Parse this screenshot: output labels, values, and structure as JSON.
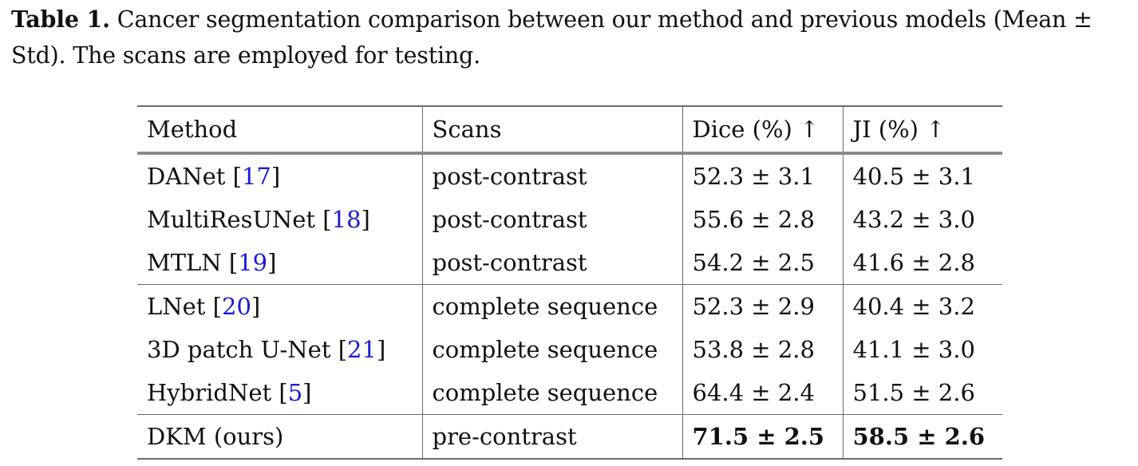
{
  "caption": {
    "label": "Table 1.",
    "text": " Cancer segmentation comparison between our method and previous models (Mean ± Std). The scans are employed for testing."
  },
  "table": {
    "headers": [
      "Method",
      "Scans",
      "Dice (%) ↑",
      "JI (%) ↑"
    ],
    "rows": [
      {
        "method": "DANet",
        "ref": "17",
        "scans": "post-contrast",
        "dice": "52.3 ± 3.1",
        "ji": "40.5 ± 3.1"
      },
      {
        "method": "MultiResUNet",
        "ref": "18",
        "scans": "post-contrast",
        "dice": "55.6 ± 2.8",
        "ji": "43.2 ± 3.0"
      },
      {
        "method": "MTLN",
        "ref": "19",
        "scans": "post-contrast",
        "dice": "54.2 ± 2.5",
        "ji": "41.6 ± 2.8"
      },
      {
        "method": "LNet",
        "ref": "20",
        "scans": "complete sequence",
        "dice": "52.3 ± 2.9",
        "ji": "40.4 ± 3.2"
      },
      {
        "method": "3D patch U-Net",
        "ref": "21",
        "scans": "complete sequence",
        "dice": "53.8 ± 2.8",
        "ji": "41.1 ± 3.0"
      },
      {
        "method": "HybridNet",
        "ref": "5",
        "scans": "complete sequence",
        "dice": "64.4 ± 2.4",
        "ji": "51.5 ± 2.6"
      },
      {
        "method": "DKM (ours)",
        "ref": "",
        "scans": "pre-contrast",
        "dice": "71.5 ± 2.5",
        "ji": "58.5 ± 2.6"
      }
    ]
  },
  "colors": {
    "link": "#1a1ad6",
    "rule": "#6b6b6b"
  }
}
